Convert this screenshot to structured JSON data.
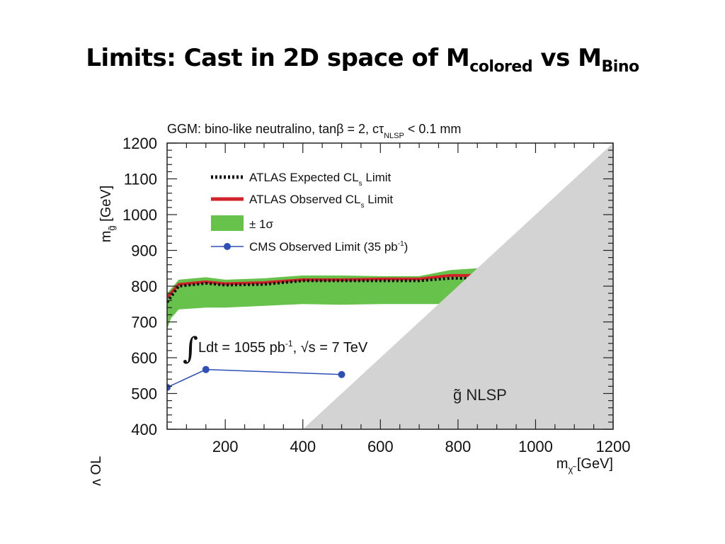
{
  "slide": {
    "title_main": "Limits: Cast in 2D space of M",
    "title_sub1": "colored",
    "title_mid": " vs M",
    "title_sub2": "Bino"
  },
  "chart_data": {
    "type": "line",
    "header": "GGM: bino-like neutralino, tanβ = 2, cτ",
    "header_subscript": "NLSP",
    "header_suffix": " < 0.1 mm",
    "xlabel": "m",
    "xlabel_subscript": "χ̃",
    "xlabel_suffix": " [GeV]",
    "ylabel": "m",
    "ylabel_subscript": "g̃",
    "ylabel_suffix": " [GeV]",
    "xlim": [
      50,
      1200
    ],
    "ylim": [
      400,
      1200
    ],
    "x_ticks": [
      200,
      400,
      600,
      800,
      1000,
      1200
    ],
    "y_ticks": [
      400,
      500,
      600,
      700,
      800,
      900,
      1000,
      1100,
      1200
    ],
    "x_tick_labels": [
      "200",
      "400",
      "600",
      "800",
      "1000",
      "1200"
    ],
    "y_tick_labels": [
      "400",
      "500",
      "600",
      "700",
      "800",
      "900",
      "1000",
      "1100",
      "1200"
    ],
    "legend": [
      {
        "label": "ATLAS Expected CL",
        "sub": "s",
        "suffix": " Limit",
        "style": "dotted-black"
      },
      {
        "label": "ATLAS Observed CL",
        "sub": "s",
        "suffix": " Limit",
        "style": "solid-red"
      },
      {
        "label": "± 1σ",
        "sub": "",
        "suffix": "",
        "style": "green-band"
      },
      {
        "label": "CMS Observed Limit (35 pb",
        "sup": "-1",
        "suffix": ")",
        "style": "blue-marker-line"
      }
    ],
    "legend_position": "top-left",
    "annotation": "Ldt = 1055 pb",
    "annotation_sup": "-1",
    "annotation_suffix": ", √s = 7 TeV",
    "region_label": "g̃ NLSP",
    "colors": {
      "expected": "#111111",
      "observed": "#d2232a",
      "band": "#66c24a",
      "cms": "#2e4fb5",
      "excluded_region": "#d3d3d3"
    },
    "series": [
      {
        "name": "ATLAS Expected CL_s Limit",
        "x": [
          50,
          80,
          150,
          200,
          300,
          400,
          500,
          600,
          700,
          780,
          850
        ],
        "y": [
          755,
          800,
          808,
          803,
          805,
          815,
          815,
          815,
          815,
          822,
          822
        ]
      },
      {
        "name": "ATLAS Observed CL_s Limit",
        "x": [
          50,
          80,
          150,
          200,
          300,
          400,
          500,
          600,
          700,
          780,
          850
        ],
        "y": [
          768,
          805,
          812,
          807,
          810,
          818,
          818,
          820,
          820,
          830,
          830
        ]
      },
      {
        "name": "± 1σ upper",
        "x": [
          50,
          80,
          150,
          200,
          300,
          400,
          500,
          600,
          700,
          780,
          850
        ],
        "y": [
          780,
          818,
          825,
          818,
          822,
          830,
          830,
          828,
          828,
          845,
          850
        ]
      },
      {
        "name": "± 1σ lower",
        "x": [
          50,
          60,
          80,
          150,
          200,
          300,
          400,
          500,
          600,
          700,
          780,
          850
        ],
        "y": [
          680,
          710,
          735,
          740,
          740,
          745,
          750,
          748,
          750,
          750,
          750,
          750
        ]
      },
      {
        "name": "CMS Observed Limit (35 pb^-1)",
        "x": [
          50,
          150,
          500
        ],
        "y": [
          517,
          567,
          553
        ]
      }
    ]
  }
}
